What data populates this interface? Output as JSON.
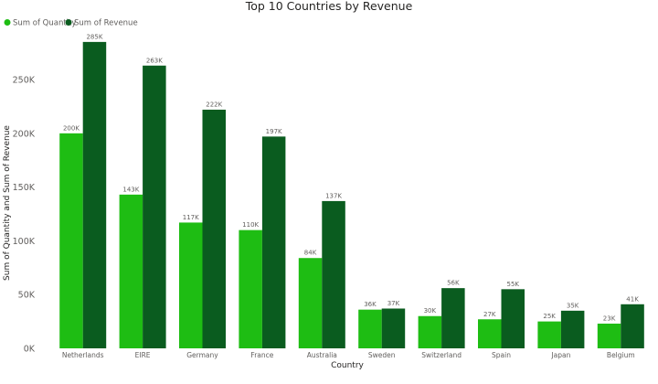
{
  "chart_data": {
    "type": "bar",
    "title": "Top 10 Countries by Revenue",
    "xlabel": "Country",
    "ylabel": "Sum of Quantity and Sum of Revenue",
    "ylim": [
      0,
      290000
    ],
    "yticks": [
      0,
      50000,
      100000,
      150000,
      200000,
      250000
    ],
    "ytick_labels": [
      "0K",
      "50K",
      "100K",
      "150K",
      "200K",
      "250K"
    ],
    "grid": false,
    "legend": "top-left",
    "categories": [
      "Netherlands",
      "EIRE",
      "Germany",
      "France",
      "Australia",
      "Sweden",
      "Switzerland",
      "Spain",
      "Japan",
      "Belgium"
    ],
    "series": [
      {
        "name": "Sum of Quantity",
        "color": "#1ebd13",
        "values": [
          200000,
          143000,
          117000,
          110000,
          84000,
          36000,
          30000,
          27000,
          25000,
          23000
        ],
        "labels": [
          "200K",
          "143K",
          "117K",
          "110K",
          "84K",
          "36K",
          "30K",
          "27K",
          "25K",
          "23K"
        ]
      },
      {
        "name": "Sum of Revenue",
        "color": "#0a5c1f",
        "values": [
          285000,
          263000,
          222000,
          197000,
          137000,
          37000,
          56000,
          55000,
          35000,
          41000
        ],
        "labels": [
          "285K",
          "263K",
          "222K",
          "197K",
          "137K",
          "37K",
          "56K",
          "55K",
          "35K",
          "41K"
        ]
      }
    ]
  }
}
